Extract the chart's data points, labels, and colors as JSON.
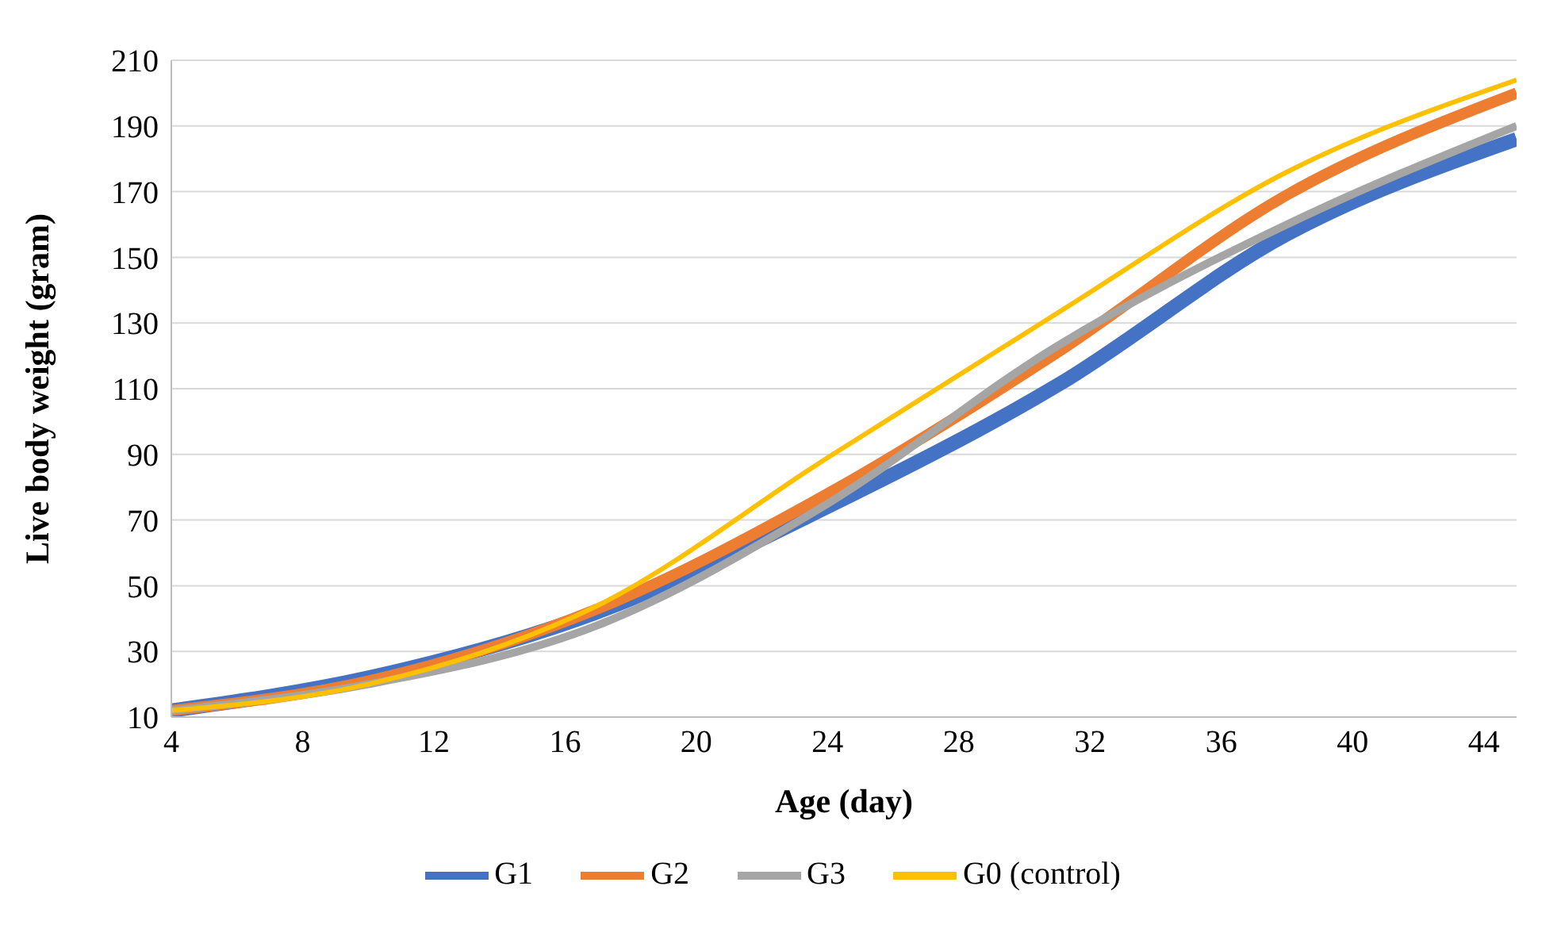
{
  "chart_data": {
    "type": "line",
    "xlabel": "Age (day)",
    "ylabel": "Live body weight (gram)",
    "x": [
      4,
      10,
      17,
      24,
      31,
      38,
      45
    ],
    "series": [
      {
        "name": "G1",
        "color": "#4472c4",
        "values": [
          12,
          22,
          42,
          74,
          111,
          157,
          186
        ]
      },
      {
        "name": "G2",
        "color": "#ed7d31",
        "values": [
          12,
          21,
          43,
          78,
          121,
          169,
          200
        ]
      },
      {
        "name": "G3",
        "color": "#a5a5a5",
        "values": [
          12,
          20,
          38,
          75,
          123,
          160,
          190
        ]
      },
      {
        "name": "G0 (control)",
        "color": "#ffc000",
        "values": [
          12,
          20,
          44,
          89,
          133,
          176,
          204
        ]
      }
    ],
    "xlim": [
      4,
      45
    ],
    "xticks": [
      4,
      8,
      12,
      16,
      20,
      24,
      28,
      32,
      36,
      40,
      44
    ],
    "ylim": [
      10,
      210
    ],
    "yticks": [
      10,
      30,
      50,
      70,
      90,
      110,
      130,
      150,
      170,
      190,
      210
    ],
    "grid": "y",
    "legend": "bottom",
    "marker": "none",
    "line_style": "solid"
  }
}
